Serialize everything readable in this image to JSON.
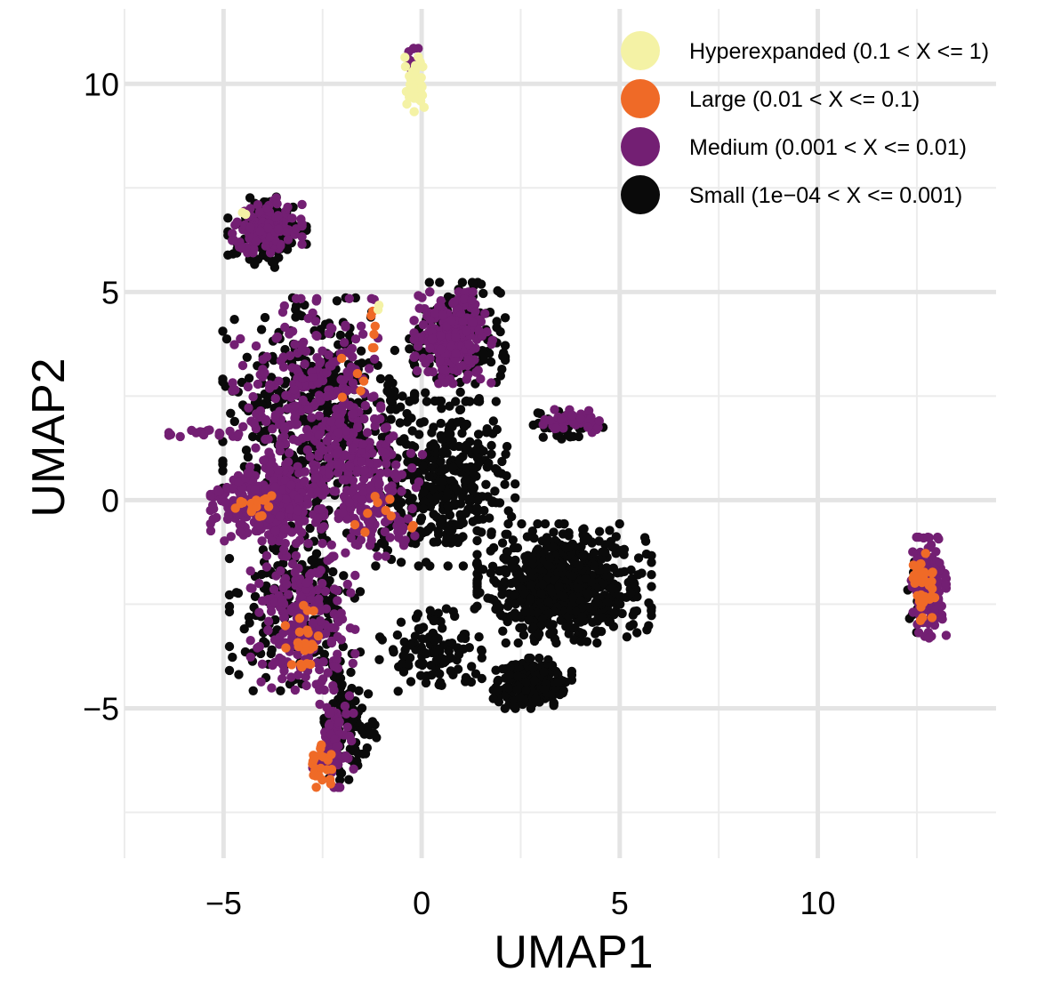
{
  "chart_data": {
    "type": "scatter",
    "xlabel": "UMAP1",
    "ylabel": "UMAP2",
    "xlim": [
      -7.5,
      14.5
    ],
    "ylim": [
      -8.6,
      11.8
    ],
    "x_ticks": [
      {
        "value": -5,
        "label": "−5"
      },
      {
        "value": 0,
        "label": "0"
      },
      {
        "value": 5,
        "label": "5"
      },
      {
        "value": 10,
        "label": "10"
      }
    ],
    "y_ticks": [
      {
        "value": -5,
        "label": "−5"
      },
      {
        "value": 0,
        "label": "0"
      },
      {
        "value": 5,
        "label": "5"
      },
      {
        "value": 10,
        "label": "10"
      }
    ],
    "x_minor_gridlines": [
      -7.5,
      -2.5,
      2.5,
      7.5,
      12.5
    ],
    "y_minor_gridlines": [
      -7.5,
      -2.5,
      2.5,
      7.5
    ],
    "grid": true,
    "legend_position": "top-right",
    "series": [
      {
        "name": "Small (1e−04 < X <= 0.001)",
        "color": "#0a0a0a",
        "regions": [
          {
            "cx": 3.6,
            "cy": -2.0,
            "rx": 2.0,
            "ry": 1.3,
            "n": 700
          },
          {
            "cx": 2.8,
            "cy": -4.4,
            "rx": 0.9,
            "ry": 0.55,
            "n": 220
          },
          {
            "cx": 0.9,
            "cy": 3.8,
            "rx": 1.1,
            "ry": 1.3,
            "n": 200
          },
          {
            "cx": 0.6,
            "cy": 0.4,
            "rx": 1.6,
            "ry": 1.8,
            "n": 350
          },
          {
            "cx": -2.6,
            "cy": 2.0,
            "rx": 2.2,
            "ry": 2.6,
            "n": 450
          },
          {
            "cx": -3.2,
            "cy": -2.6,
            "rx": 1.5,
            "ry": 1.8,
            "n": 220
          },
          {
            "cx": -3.9,
            "cy": 6.4,
            "rx": 0.9,
            "ry": 0.8,
            "n": 120
          },
          {
            "cx": -1.8,
            "cy": -5.4,
            "rx": 0.6,
            "ry": 1.2,
            "n": 100
          },
          {
            "cx": 0.2,
            "cy": -3.6,
            "rx": 1.2,
            "ry": 0.9,
            "n": 120
          },
          {
            "cx": 3.7,
            "cy": 1.8,
            "rx": 0.8,
            "ry": 0.3,
            "n": 50
          },
          {
            "cx": 12.6,
            "cy": -2.2,
            "rx": 0.3,
            "ry": 0.9,
            "n": 30
          }
        ]
      },
      {
        "name": "Medium (0.001 < X <= 0.01)",
        "color": "#731f73",
        "regions": [
          {
            "cx": -3.9,
            "cy": -0.1,
            "rx": 1.3,
            "ry": 0.8,
            "n": 320
          },
          {
            "cx": -2.9,
            "cy": 2.2,
            "rx": 1.7,
            "ry": 2.4,
            "n": 320
          },
          {
            "cx": 0.8,
            "cy": 3.9,
            "rx": 0.9,
            "ry": 1.0,
            "n": 240
          },
          {
            "cx": -3.0,
            "cy": -2.8,
            "rx": 1.2,
            "ry": 1.6,
            "n": 220
          },
          {
            "cx": -3.9,
            "cy": 6.6,
            "rx": 0.8,
            "ry": 0.6,
            "n": 120
          },
          {
            "cx": -1.3,
            "cy": 0.3,
            "rx": 1.2,
            "ry": 1.5,
            "n": 180
          },
          {
            "cx": 12.8,
            "cy": -2.1,
            "rx": 0.4,
            "ry": 1.1,
            "n": 170
          },
          {
            "cx": -2.2,
            "cy": -5.8,
            "rx": 0.5,
            "ry": 1.0,
            "n": 70
          },
          {
            "cx": 3.8,
            "cy": 1.9,
            "rx": 0.8,
            "ry": 0.25,
            "n": 45
          },
          {
            "cx": -0.2,
            "cy": 10.3,
            "rx": 0.2,
            "ry": 0.5,
            "n": 12
          },
          {
            "cx": -5.5,
            "cy": 1.6,
            "rx": 0.8,
            "ry": 0.1,
            "n": 18
          }
        ]
      },
      {
        "name": "Large (0.01 < X <= 0.1)",
        "color": "#ef6a27",
        "regions": [
          {
            "cx": -2.6,
            "cy": -6.5,
            "rx": 0.3,
            "ry": 0.6,
            "n": 22
          },
          {
            "cx": -3.0,
            "cy": -3.3,
            "rx": 0.5,
            "ry": 0.9,
            "n": 22
          },
          {
            "cx": -4.3,
            "cy": -0.1,
            "rx": 0.5,
            "ry": 0.3,
            "n": 18
          },
          {
            "cx": 12.7,
            "cy": -2.0,
            "rx": 0.3,
            "ry": 1.0,
            "n": 32
          },
          {
            "cx": -1.2,
            "cy": 4.1,
            "rx": 0.1,
            "ry": 0.4,
            "n": 6
          },
          {
            "cx": -1.0,
            "cy": -0.3,
            "rx": 1.0,
            "ry": 0.5,
            "n": 10
          },
          {
            "cx": -1.8,
            "cy": 2.7,
            "rx": 0.6,
            "ry": 0.8,
            "n": 5
          }
        ]
      },
      {
        "name": "Hyperexpanded (0.1 < X <= 1)",
        "color": "#f4f2a5",
        "regions": [
          {
            "cx": -0.2,
            "cy": 10.1,
            "rx": 0.25,
            "ry": 0.7,
            "n": 45
          },
          {
            "cx": -1.1,
            "cy": 4.6,
            "rx": 0.05,
            "ry": 0.15,
            "n": 2
          },
          {
            "cx": -4.5,
            "cy": 6.9,
            "rx": 0.1,
            "ry": 0.1,
            "n": 2
          }
        ]
      }
    ],
    "legend_order": [
      3,
      2,
      1,
      0
    ]
  }
}
